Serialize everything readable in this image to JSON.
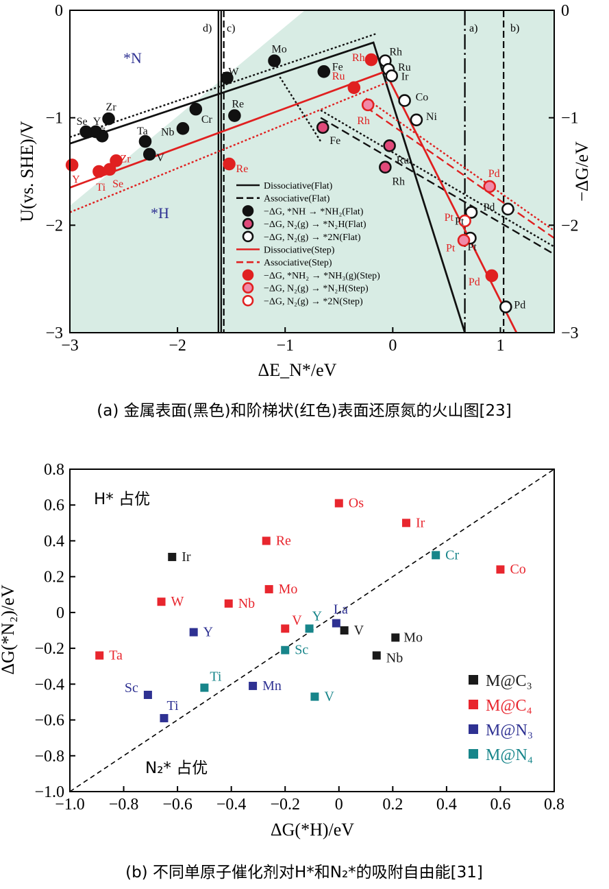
{
  "figure_a": {
    "caption": "(a) 金属表面(黑色)和阶梯状(红色)表面还原氮的火山图[23]",
    "xlabel": "ΔE_N*/eV",
    "ylabel_left": "U(vs. SHE)/V",
    "ylabel_right": "−ΔG/eV",
    "region_n": "*N",
    "region_h": "*H",
    "vline_labels": [
      "d)",
      "c)",
      "a)",
      "b)"
    ]
  },
  "figure_b": {
    "caption": "(b) 不同单原子催化剂对H*和N₂*的吸附自由能[31]",
    "xlabel": "ΔG(*H)/eV",
    "ylabel": "ΔG(*N₂)/eV",
    "region_h": "H* 占优",
    "region_n2": "N₂* 占优"
  },
  "chart_data": [
    {
      "type": "scatter",
      "title": "金属表面和阶梯状表面还原氮的火山图",
      "xlabel": "ΔE_N*/eV",
      "ylabel": "U(vs. SHE)/V",
      "ylabel_right": "−ΔG/eV",
      "xlim": [
        -3,
        1.5
      ],
      "ylim": [
        -3,
        0
      ],
      "xticks": [
        -3,
        -2,
        -1,
        0,
        1
      ],
      "xtick_labels": [
        "−3",
        "−2",
        "−1",
        "0",
        "1"
      ],
      "yticks": [
        0,
        -1,
        -2,
        -3
      ],
      "ytick_labels": [
        "0",
        "−1",
        "−2",
        "−3"
      ],
      "legend_position": "bottom-center",
      "legend": [
        {
          "label": "Dissociative(Flat)",
          "kind": "line",
          "color": "#111111",
          "dash": "solid"
        },
        {
          "label": "Associative(Flat)",
          "kind": "line",
          "color": "#111111",
          "dash": "dashed"
        },
        {
          "label": "−ΔG, *NH → *NH₂(Flat)",
          "kind": "marker",
          "color": "#111111",
          "fill": "#111111"
        },
        {
          "label": "−ΔG, N₂(g) → *N₂H(Flat)",
          "kind": "marker",
          "color": "#111111",
          "fill": "#e04a7a"
        },
        {
          "label": "−ΔG, N₂(g) → *2N(Flat)",
          "kind": "marker",
          "color": "#111111",
          "fill": "#ffffff"
        },
        {
          "label": "Dissociative(Step)",
          "kind": "line",
          "color": "#e02020",
          "dash": "solid"
        },
        {
          "label": "Associative(Step)",
          "kind": "line",
          "color": "#e02020",
          "dash": "dashed"
        },
        {
          "label": "−ΔG, *NH₂ → *NH₃(g)(Step)",
          "kind": "marker",
          "color": "#e02020",
          "fill": "#e02020"
        },
        {
          "label": "−ΔG, N₂(g) → *N₂H(Step)",
          "kind": "marker",
          "color": "#e02020",
          "fill": "#f08aa8"
        },
        {
          "label": "−ΔG, N₂(g) → *2N(Step)",
          "kind": "marker",
          "color": "#e02020",
          "fill": "#ffffff"
        }
      ],
      "vertical_lines": [
        {
          "label": "d)",
          "x": -1.62,
          "style": "solid"
        },
        {
          "label": "c)",
          "x": -1.57,
          "style": "dashed"
        },
        {
          "label": "a)",
          "x": 0.67,
          "style": "dashdot"
        },
        {
          "label": "b)",
          "x": 1.03,
          "style": "dashed"
        }
      ],
      "lines": [
        {
          "name": "Dissociative(Flat)",
          "color": "#111111",
          "dash": "solid",
          "points": [
            [
              -3,
              -1.24
            ],
            [
              -0.18,
              -0.3
            ],
            [
              0.67,
              -3.0
            ]
          ]
        },
        {
          "name": "Associative(Flat) left",
          "color": "#111111",
          "dash": "dotted",
          "points": [
            [
              -3,
              -1.18
            ],
            [
              -0.16,
              -0.22
            ]
          ]
        },
        {
          "name": "Associative(Flat) Mo branch",
          "color": "#111111",
          "dash": "dotted",
          "points": [
            [
              -1.05,
              -0.62
            ],
            [
              -0.67,
              -1.22
            ]
          ]
        },
        {
          "name": "Associative(Flat) Fe branch",
          "color": "#111111",
          "dash": "dashed",
          "points": [
            [
              -0.67,
              -1.0
            ],
            [
              1.5,
              -2.27
            ]
          ]
        },
        {
          "name": "Associative(Flat) dotted",
          "color": "#111111",
          "dash": "dotted",
          "points": [
            [
              -0.67,
              -0.93
            ],
            [
              1.5,
              -2.2
            ]
          ]
        },
        {
          "name": "Dissociative(Step)",
          "color": "#e02020",
          "dash": "solid",
          "points": [
            [
              -3,
              -1.65
            ],
            [
              -0.07,
              -0.57
            ],
            [
              1.15,
              -3.0
            ]
          ]
        },
        {
          "name": "Associative(Step)",
          "color": "#e02020",
          "dash": "dotted",
          "points": [
            [
              -3,
              -1.88
            ],
            [
              -0.05,
              -0.67
            ]
          ]
        },
        {
          "name": "Associative(Step) right",
          "color": "#e02020",
          "dash": "dashed",
          "points": [
            [
              -0.25,
              -0.9
            ],
            [
              1.5,
              -2.12
            ]
          ]
        },
        {
          "name": "Associative(Step) right dotted",
          "color": "#e02020",
          "dash": "dotted",
          "points": [
            [
              -0.25,
              -0.82
            ],
            [
              1.5,
              -2.05
            ]
          ]
        }
      ],
      "series": [
        {
          "name": "−ΔG, *NH → *NH₂(Flat)",
          "style": "black-filled",
          "points": [
            {
              "label": "Se",
              "x": -2.85,
              "y": -1.13
            },
            {
              "label": "Y",
              "x": -2.76,
              "y": -1.13
            },
            {
              "label": "Ti",
              "x": -2.7,
              "y": -1.17
            },
            {
              "label": "Zr",
              "x": -2.64,
              "y": -1.01
            },
            {
              "label": "Ta",
              "x": -2.3,
              "y": -1.22
            },
            {
              "label": "V",
              "x": -2.26,
              "y": -1.34
            },
            {
              "label": "Nb",
              "x": -1.95,
              "y": -1.1
            },
            {
              "label": "Cr",
              "x": -1.83,
              "y": -0.92
            },
            {
              "label": "W",
              "x": -1.54,
              "y": -0.63
            },
            {
              "label": "Re",
              "x": -1.47,
              "y": -0.98
            },
            {
              "label": "Mo",
              "x": -1.1,
              "y": -0.47
            },
            {
              "label": "Fe",
              "x": -0.64,
              "y": -0.57
            }
          ]
        },
        {
          "name": "−ΔG, N₂(g) → *N₂H(Flat)",
          "style": "pink-black",
          "points": [
            {
              "label": "Fe",
              "x": -0.65,
              "y": -1.09
            },
            {
              "label": "Ru",
              "x": -0.03,
              "y": -1.26
            },
            {
              "label": "Rh",
              "x": -0.07,
              "y": -1.46
            }
          ]
        },
        {
          "name": "−ΔG, N₂(g) → *2N(Flat)",
          "style": "black-open",
          "points": [
            {
              "label": "Rh",
              "x": -0.07,
              "y": -0.47
            },
            {
              "label": "Ru",
              "x": -0.04,
              "y": -0.55
            },
            {
              "label": "Ir",
              "x": -0.01,
              "y": -0.61
            },
            {
              "label": "Co",
              "x": 0.11,
              "y": -0.84
            },
            {
              "label": "Ni",
              "x": 0.22,
              "y": -1.02
            },
            {
              "label": "Pd",
              "x": 1.07,
              "y": -1.85
            },
            {
              "label": "Pt",
              "x": 0.73,
              "y": -1.88
            },
            {
              "label": "Pt",
              "x": 0.72,
              "y": -2.12
            },
            {
              "label": "Pd",
              "x": 1.05,
              "y": -2.76
            }
          ]
        },
        {
          "name": "−ΔG, *NH₂ → *NH₃(g)(Step)",
          "style": "red-filled",
          "points": [
            {
              "label": "Y",
              "x": -2.98,
              "y": -1.44
            },
            {
              "label": "Ti",
              "x": -2.73,
              "y": -1.5
            },
            {
              "label": "Se",
              "x": -2.63,
              "y": -1.48
            },
            {
              "label": "Zr",
              "x": -2.57,
              "y": -1.4
            },
            {
              "label": "Re",
              "x": -1.52,
              "y": -1.43
            },
            {
              "label": "Rh",
              "x": -0.2,
              "y": -0.46
            },
            {
              "label": "Ru",
              "x": -0.36,
              "y": -0.72
            },
            {
              "label": "Pd",
              "x": 0.92,
              "y": -2.47
            }
          ]
        },
        {
          "name": "−ΔG, N₂(g) → *N₂H(Step)",
          "style": "pink-red",
          "points": [
            {
              "label": "Rh",
              "x": -0.23,
              "y": -0.88
            },
            {
              "label": "Pt",
              "x": 0.66,
              "y": -2.14
            },
            {
              "label": "Pd",
              "x": 0.9,
              "y": -1.64
            }
          ]
        },
        {
          "name": "−ΔG, N₂(g) → *2N(Step)",
          "style": "red-open",
          "points": [
            {
              "label": "Pt",
              "x": 0.67,
              "y": -1.96
            }
          ]
        }
      ]
    },
    {
      "type": "scatter",
      "title": "不同单原子催化剂对H*和N₂*的吸附自由能",
      "xlabel": "ΔG(*H)/eV",
      "ylabel": "ΔG(*N₂)/eV",
      "xlim": [
        -1.0,
        0.8
      ],
      "ylim": [
        -1.0,
        0.8
      ],
      "xticks": [
        -1.0,
        -0.8,
        -0.6,
        -0.4,
        -0.2,
        0,
        0.2,
        0.4,
        0.6,
        0.8
      ],
      "xtick_labels": [
        "−1.0",
        "−0.8",
        "−0.6",
        "−0.4",
        "−0.2",
        "0",
        "0.2",
        "0.4",
        "0.6",
        "0.8"
      ],
      "yticks": [
        0.8,
        0.6,
        0.4,
        0.2,
        0,
        -0.2,
        -0.4,
        -0.6,
        -0.8,
        -1.0
      ],
      "ytick_labels": [
        "0.8",
        "0.6",
        "0.4",
        "0.2",
        "0",
        "−0.2",
        "−0.4",
        "−0.6",
        "−0.8",
        "−1.0"
      ],
      "diagonal": "y = x",
      "legend_position": "right",
      "series": [
        {
          "name": "M@C₃",
          "color": "#1a1a1a",
          "points": [
            {
              "label": "Ir",
              "x": -0.62,
              "y": 0.31
            },
            {
              "label": "V",
              "x": 0.02,
              "y": -0.1
            },
            {
              "label": "Mo",
              "x": 0.21,
              "y": -0.14
            },
            {
              "label": "Nb",
              "x": 0.14,
              "y": -0.24
            }
          ]
        },
        {
          "name": "M@C₄",
          "color": "#e8262e",
          "points": [
            {
              "label": "Os",
              "x": 0.0,
              "y": 0.61
            },
            {
              "label": "Ir",
              "x": 0.25,
              "y": 0.5
            },
            {
              "label": "Re",
              "x": -0.27,
              "y": 0.4
            },
            {
              "label": "Co",
              "x": 0.6,
              "y": 0.24
            },
            {
              "label": "Mo",
              "x": -0.26,
              "y": 0.13
            },
            {
              "label": "W",
              "x": -0.66,
              "y": 0.06
            },
            {
              "label": "Nb",
              "x": -0.41,
              "y": 0.05
            },
            {
              "label": "V",
              "x": -0.2,
              "y": -0.09
            },
            {
              "label": "Ta",
              "x": -0.89,
              "y": -0.24
            }
          ]
        },
        {
          "name": "M@N₃",
          "color": "#2e3192",
          "points": [
            {
              "label": "Y",
              "x": -0.54,
              "y": -0.11
            },
            {
              "label": "La",
              "x": -0.01,
              "y": -0.06
            },
            {
              "label": "Sc",
              "x": -0.71,
              "y": -0.46
            },
            {
              "label": "Mn",
              "x": -0.32,
              "y": -0.41
            },
            {
              "label": "Ti",
              "x": -0.65,
              "y": -0.59
            }
          ]
        },
        {
          "name": "M@N₄",
          "color": "#17858a",
          "points": [
            {
              "label": "Cr",
              "x": 0.36,
              "y": 0.32
            },
            {
              "label": "Y",
              "x": -0.11,
              "y": -0.09
            },
            {
              "label": "Sc",
              "x": -0.2,
              "y": -0.21
            },
            {
              "label": "Ti",
              "x": -0.5,
              "y": -0.42
            },
            {
              "label": "V",
              "x": -0.09,
              "y": -0.47
            }
          ]
        }
      ]
    }
  ]
}
